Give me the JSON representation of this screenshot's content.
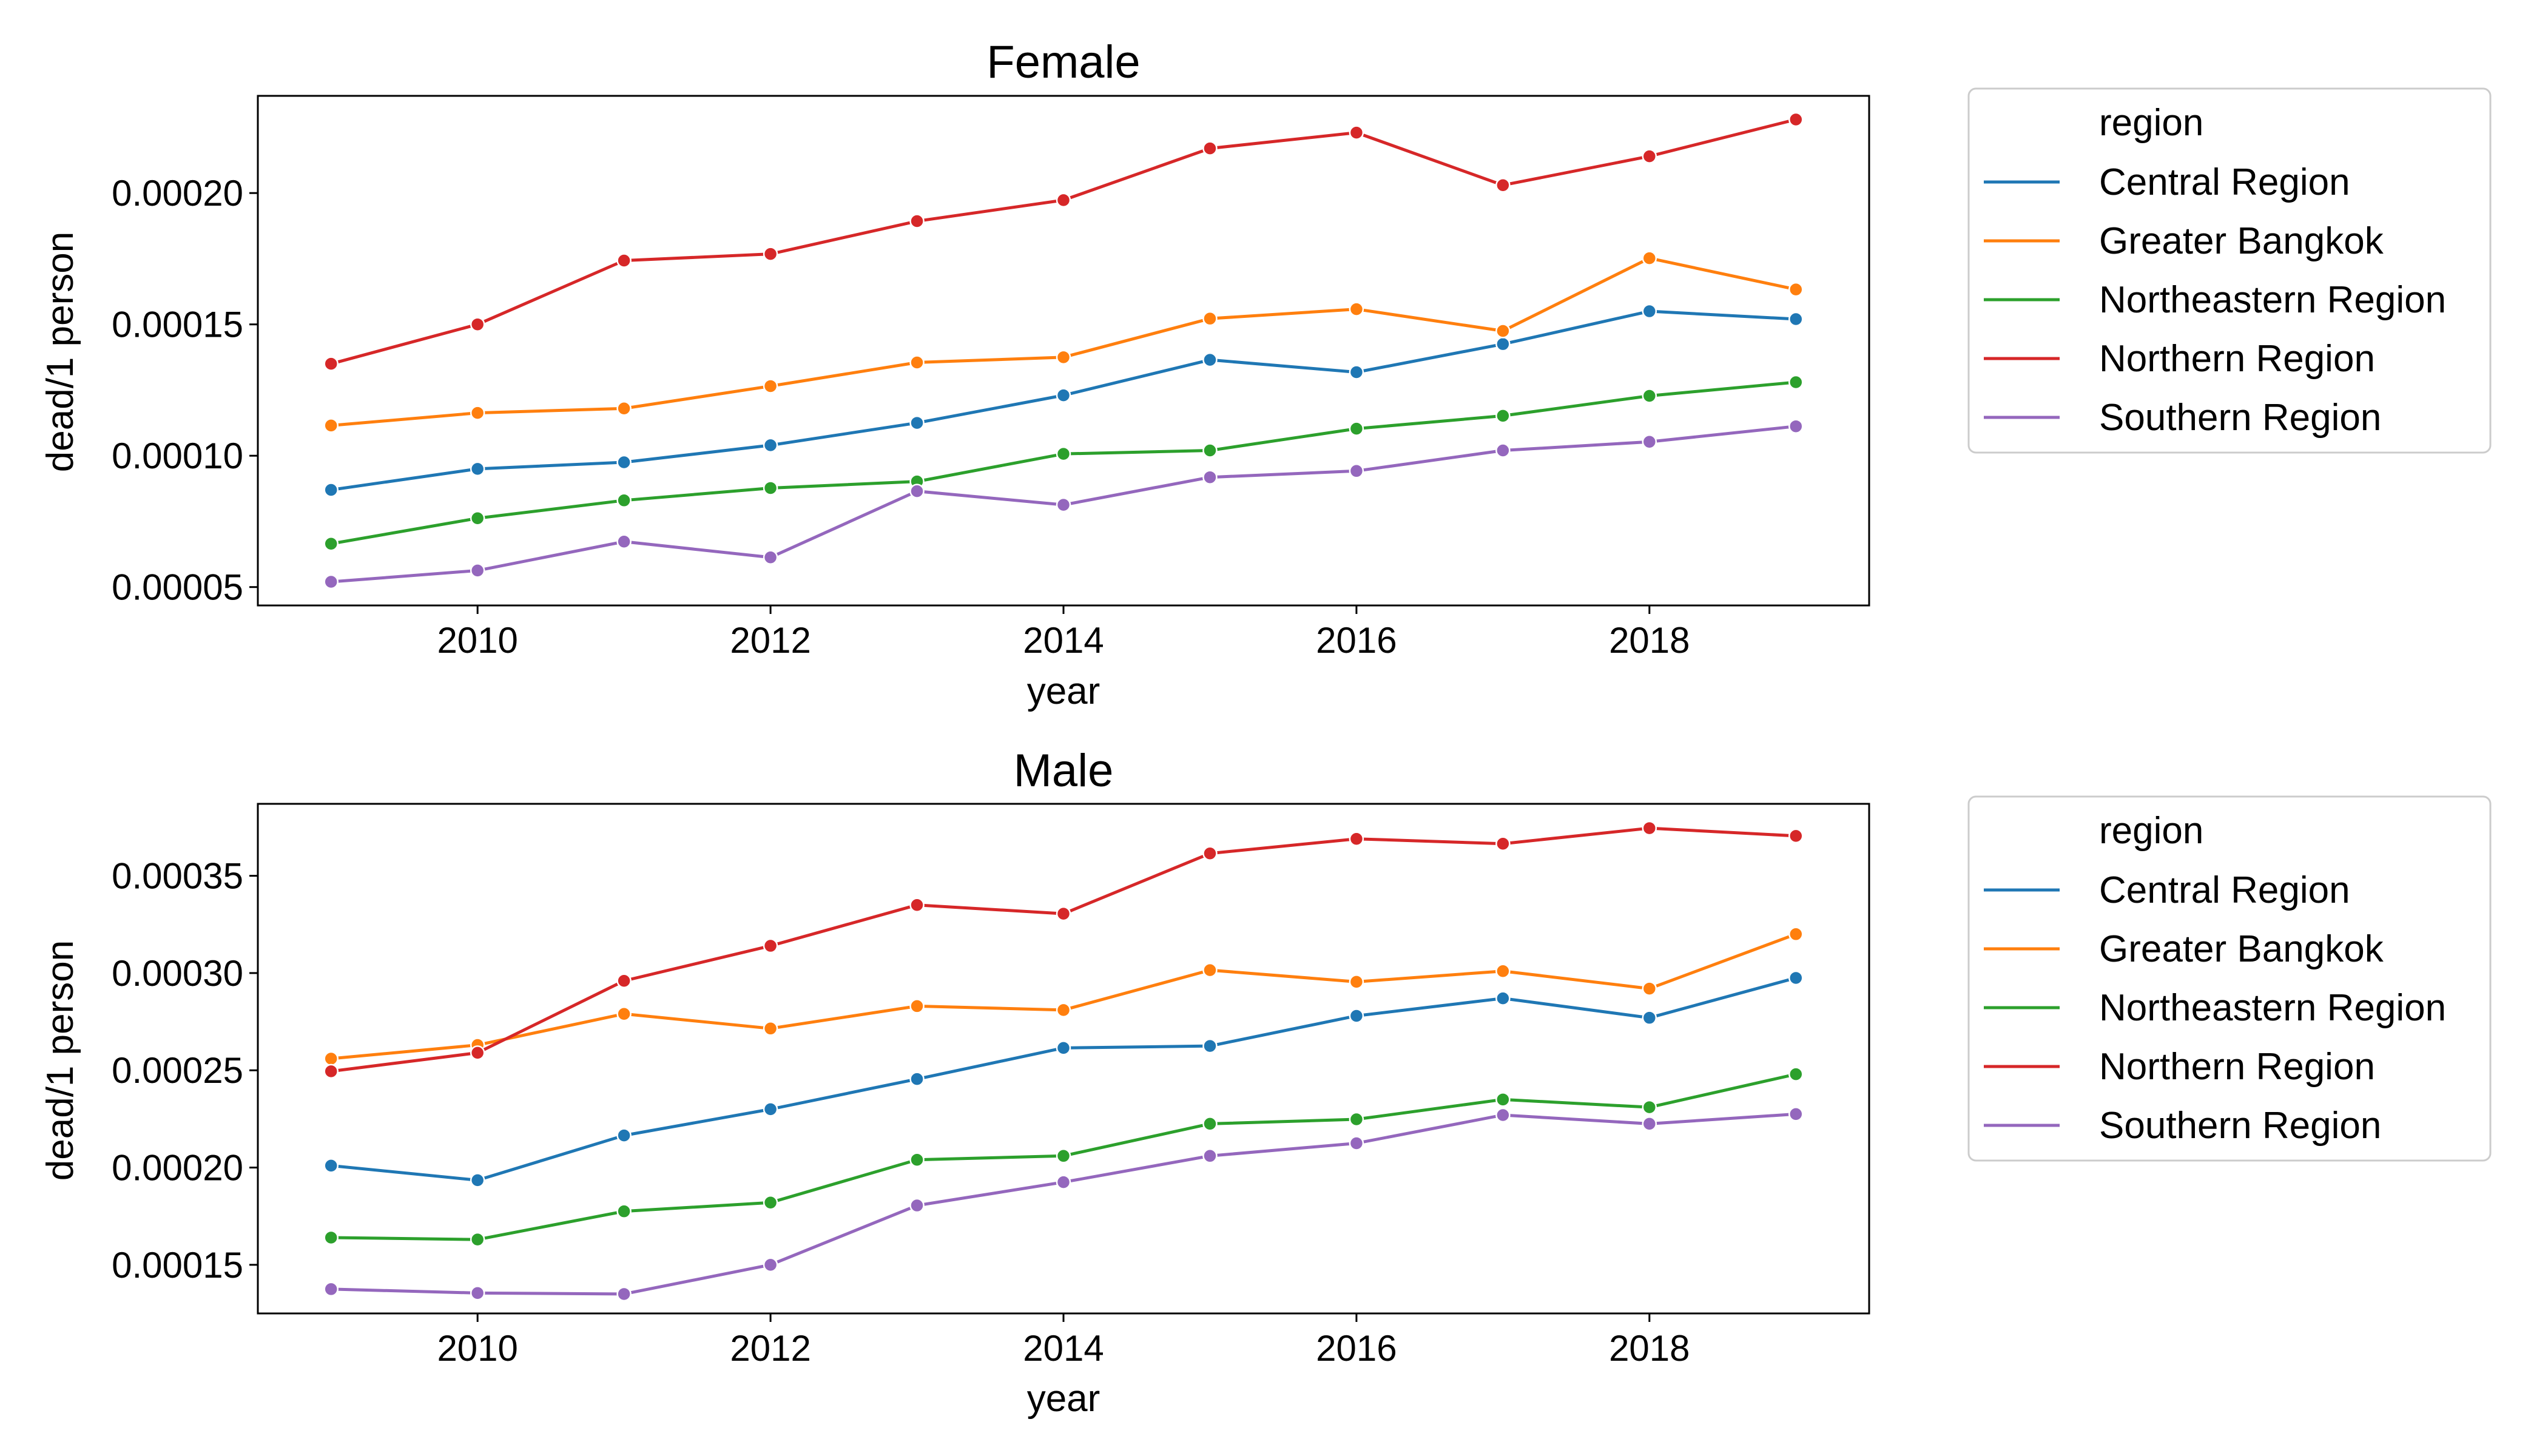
{
  "chart_data": [
    {
      "type": "line",
      "title": "Female",
      "xlabel": "year",
      "ylabel": "dead/1 person",
      "x": [
        2009,
        2010,
        2011,
        2012,
        2013,
        2014,
        2015,
        2016,
        2017,
        2018,
        2019
      ],
      "xlim": [
        2008.5,
        2019.5
      ],
      "ylim": [
        4.3e-05,
        0.000237
      ],
      "xticks": [
        2010,
        2012,
        2014,
        2016,
        2018
      ],
      "yticks": [
        5e-05,
        0.0001,
        0.00015,
        0.0002
      ],
      "ytick_labels": [
        "0.00005",
        "0.00010",
        "0.00015",
        "0.00020"
      ],
      "grid": false,
      "legend": {
        "title": "region",
        "placement": "outside-right"
      },
      "series": [
        {
          "name": "Central Region",
          "color": "#1f77b4",
          "values": [
            8.7e-05,
            9.5e-05,
            9.75e-05,
            0.000104,
            0.0001125,
            0.000123,
            0.0001365,
            0.0001318,
            0.0001425,
            0.000155,
            0.000152
          ]
        },
        {
          "name": "Greater Bangkok",
          "color": "#ff7f0e",
          "values": [
            0.0001115,
            0.0001163,
            0.000118,
            0.0001265,
            0.0001355,
            0.0001375,
            0.0001522,
            0.0001558,
            0.0001475,
            0.0001752,
            0.0001633
          ]
        },
        {
          "name": "Northeastern Region",
          "color": "#2ca02c",
          "values": [
            6.65e-05,
            7.62e-05,
            8.3e-05,
            8.77e-05,
            9.02e-05,
            0.0001007,
            0.000102,
            0.0001103,
            0.0001152,
            0.0001228,
            0.000128
          ]
        },
        {
          "name": "Northern Region",
          "color": "#d62728",
          "values": [
            0.000135,
            0.00015,
            0.0001743,
            0.0001768,
            0.0001893,
            0.0001973,
            0.000217,
            0.000223,
            0.000203,
            0.000214,
            0.000228
          ]
        },
        {
          "name": "Southern Region",
          "color": "#9467bd",
          "values": [
            5.2e-05,
            5.63e-05,
            6.73e-05,
            6.13e-05,
            8.65e-05,
            8.13e-05,
            9.18e-05,
            9.42e-05,
            0.000102,
            0.0001053,
            0.0001112
          ]
        }
      ]
    },
    {
      "type": "line",
      "title": "Male",
      "xlabel": "year",
      "ylabel": "dead/1 person",
      "x": [
        2009,
        2010,
        2011,
        2012,
        2013,
        2014,
        2015,
        2016,
        2017,
        2018,
        2019
      ],
      "xlim": [
        2008.5,
        2019.5
      ],
      "ylim": [
        0.000125,
        0.000387
      ],
      "xticks": [
        2010,
        2012,
        2014,
        2016,
        2018
      ],
      "yticks": [
        0.00015,
        0.0002,
        0.00025,
        0.0003,
        0.00035
      ],
      "ytick_labels": [
        "0.00015",
        "0.00020",
        "0.00025",
        "0.00030",
        "0.00035"
      ],
      "grid": false,
      "legend": {
        "title": "region",
        "placement": "outside-right"
      },
      "series": [
        {
          "name": "Central Region",
          "color": "#1f77b4",
          "values": [
            0.000201,
            0.0001935,
            0.0002165,
            0.00023,
            0.0002455,
            0.0002615,
            0.0002625,
            0.000278,
            0.000287,
            0.000277,
            0.0002975
          ]
        },
        {
          "name": "Greater Bangkok",
          "color": "#ff7f0e",
          "values": [
            0.000256,
            0.000263,
            0.000279,
            0.0002715,
            0.000283,
            0.000281,
            0.0003015,
            0.0002955,
            0.000301,
            0.000292,
            0.00032
          ]
        },
        {
          "name": "Northeastern Region",
          "color": "#2ca02c",
          "values": [
            0.000164,
            0.000163,
            0.0001775,
            0.000182,
            0.000204,
            0.000206,
            0.0002225,
            0.0002248,
            0.000235,
            0.000231,
            0.000248
          ]
        },
        {
          "name": "Northern Region",
          "color": "#d62728",
          "values": [
            0.0002495,
            0.000259,
            0.000296,
            0.000314,
            0.000335,
            0.0003305,
            0.0003615,
            0.000369,
            0.0003665,
            0.0003745,
            0.0003705
          ]
        },
        {
          "name": "Southern Region",
          "color": "#9467bd",
          "values": [
            0.0001375,
            0.0001355,
            0.000135,
            0.00015,
            0.0001805,
            0.0001925,
            0.000206,
            0.0002125,
            0.000227,
            0.0002225,
            0.0002275
          ]
        }
      ]
    }
  ]
}
